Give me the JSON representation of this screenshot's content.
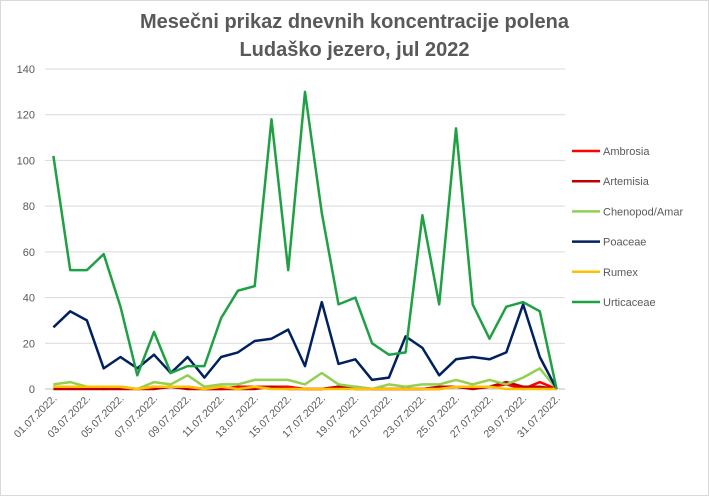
{
  "chart_data": {
    "type": "line",
    "title_line1": "Mesečni prikaz dnevnih koncentracije polena",
    "title_line2": "Ludaško jezero, jul 2022",
    "ylim": [
      0,
      140
    ],
    "yticks": [
      "0",
      "20",
      "40",
      "60",
      "80",
      "100",
      "120",
      "140"
    ],
    "x_labels": [
      "01.07.2022.",
      "02.07.2022.",
      "03.07.2022.",
      "04.07.2022.",
      "05.07.2022.",
      "06.07.2022.",
      "07.07.2022.",
      "08.07.2022.",
      "09.07.2022.",
      "10.07.2022.",
      "11.07.2022.",
      "12.07.2022.",
      "13.07.2022.",
      "14.07.2022.",
      "15.07.2022.",
      "16.07.2022.",
      "17.07.2022.",
      "18.07.2022.",
      "19.07.2022.",
      "20.07.2022.",
      "21.07.2022.",
      "22.07.2022.",
      "23.07.2022.",
      "24.07.2022.",
      "25.07.2022.",
      "26.07.2022.",
      "27.07.2022.",
      "28.07.2022.",
      "29.07.2022.",
      "30.07.2022.",
      "31.07.2022."
    ],
    "shown_x_labels": [
      "01.07.2022.",
      "03.07.2022.",
      "05.07.2022.",
      "07.07.2022.",
      "09.07.2022.",
      "11.07.2022.",
      "13.07.2022.",
      "15.07.2022.",
      "17.07.2022.",
      "19.07.2022.",
      "21.07.2022.",
      "23.07.2022.",
      "25.07.2022.",
      "27.07.2022.",
      "29.07.2022.",
      "31.07.2022."
    ],
    "grid": true,
    "legend_position": "right",
    "series": [
      {
        "name": "Ambrosia",
        "color": "#ff0000",
        "values": [
          1,
          1,
          1,
          0,
          1,
          0,
          1,
          1,
          1,
          0,
          0,
          1,
          1,
          1,
          1,
          0,
          0,
          1,
          1,
          0,
          0,
          0,
          0,
          0,
          1,
          1,
          1,
          2,
          0,
          3,
          0
        ]
      },
      {
        "name": "Artemisia",
        "color": "#c00000",
        "values": [
          0,
          0,
          0,
          0,
          0,
          0,
          0,
          1,
          0,
          0,
          0,
          0,
          0,
          1,
          0,
          0,
          0,
          1,
          0,
          0,
          0,
          0,
          0,
          1,
          1,
          0,
          1,
          3,
          1,
          1,
          0
        ]
      },
      {
        "name": "Chenopod/Amar",
        "color": "#92d050",
        "values": [
          2,
          3,
          1,
          1,
          1,
          0,
          3,
          2,
          6,
          1,
          2,
          2,
          4,
          4,
          4,
          2,
          7,
          2,
          1,
          0,
          2,
          1,
          2,
          2,
          4,
          2,
          4,
          2,
          5,
          9,
          0
        ]
      },
      {
        "name": "Poaceae",
        "color": "#002060",
        "values": [
          27,
          34,
          30,
          9,
          14,
          9,
          15,
          7,
          14,
          5,
          14,
          16,
          21,
          22,
          26,
          10,
          38,
          11,
          13,
          4,
          5,
          23,
          18,
          6,
          13,
          14,
          13,
          16,
          37,
          14,
          0
        ]
      },
      {
        "name": "Rumex",
        "color": "#ffc000",
        "values": [
          1,
          1,
          1,
          1,
          1,
          0,
          1,
          1,
          1,
          0,
          1,
          0,
          1,
          0,
          0,
          0,
          0,
          0,
          0,
          0,
          0,
          0,
          0,
          0,
          1,
          1,
          1,
          0,
          0,
          0,
          0
        ]
      },
      {
        "name": "Urticaceae",
        "color": "#1fa045",
        "values": [
          102,
          52,
          52,
          59,
          36,
          6,
          25,
          7,
          10,
          10,
          31,
          43,
          45,
          118,
          52,
          130,
          77,
          37,
          40,
          20,
          15,
          16,
          76,
          37,
          114,
          37,
          22,
          36,
          38,
          34,
          0
        ]
      }
    ]
  }
}
